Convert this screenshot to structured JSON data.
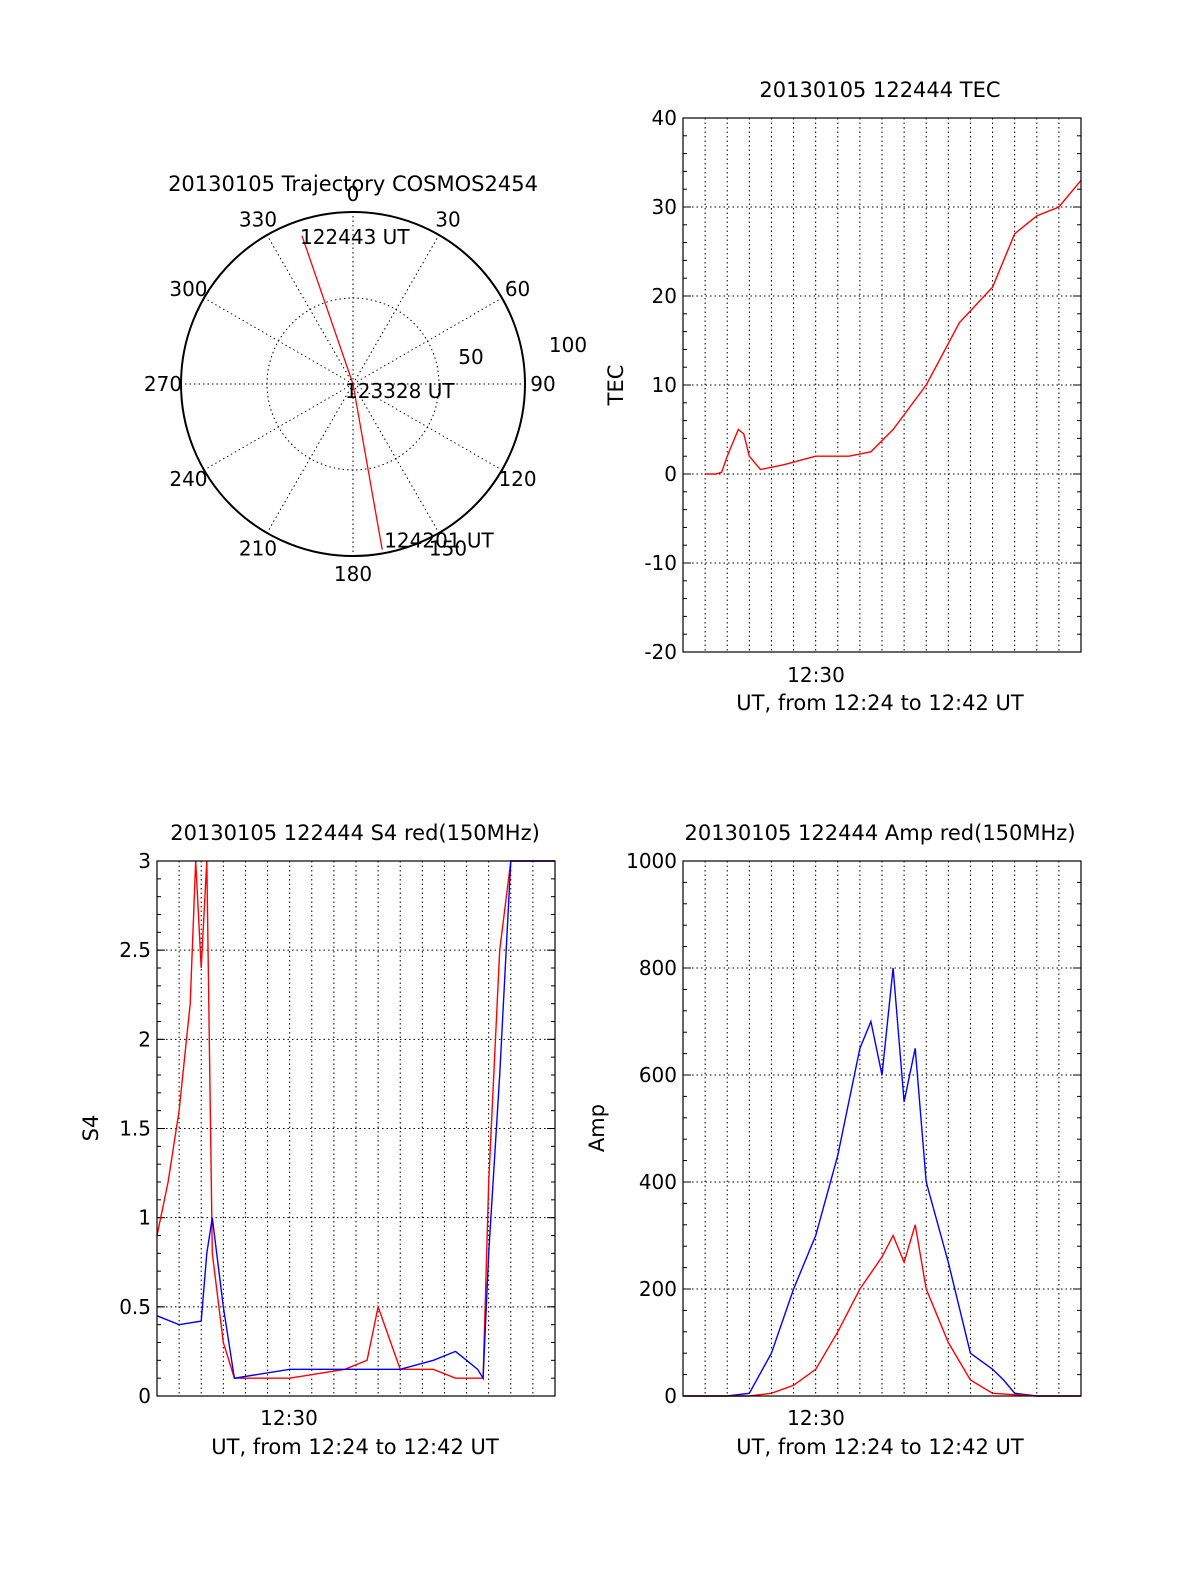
{
  "chart_data": [
    {
      "id": "polar",
      "type": "polar-trajectory",
      "title": "20130105 Trajectory COSMOS2454",
      "azimuth_labels": [
        "0",
        "30",
        "60",
        "90",
        "120",
        "150",
        "180",
        "210",
        "240",
        "270",
        "300",
        "330"
      ],
      "azimuths": [
        0,
        30,
        60,
        90,
        120,
        150,
        180,
        210,
        240,
        270,
        300,
        330
      ],
      "radius_labels": [
        "50",
        "100"
      ],
      "track": {
        "color": "#ff0000",
        "points": [
          {
            "az": 341,
            "zenith": 82
          },
          {
            "az": 0,
            "zenith": 0
          },
          {
            "az": 170,
            "zenith": 88
          }
        ]
      },
      "time_labels": [
        "122443 UT",
        "123328 UT",
        "124201 UT"
      ]
    },
    {
      "id": "tec",
      "type": "line",
      "title": "20130105 122444 TEC",
      "ylabel": "TEC",
      "xlabel": "UT, from 12:24 to 12:42 UT",
      "xtick_label": "12:30",
      "xlim": [
        12.38,
        12.74
      ],
      "ylim": [
        -20,
        40
      ],
      "yticks": [
        "-20",
        "-10",
        "0",
        "10",
        "20",
        "30",
        "40"
      ],
      "series": [
        {
          "color": "#ff0000",
          "x": [
            12.4,
            12.41,
            12.415,
            12.42,
            12.43,
            12.435,
            12.44,
            12.45,
            12.47,
            12.5,
            12.53,
            12.55,
            12.57,
            12.6,
            12.63,
            12.66,
            12.68,
            12.7,
            12.72,
            12.74
          ],
          "y": [
            0,
            0,
            0.2,
            2,
            5,
            4.5,
            2,
            0.5,
            1,
            2,
            2,
            2.5,
            5,
            10,
            17,
            21,
            27,
            29,
            30,
            33
          ]
        }
      ]
    },
    {
      "id": "s4",
      "type": "line",
      "title": "20130105 122444 S4 red(150MHz)",
      "ylabel": "S4",
      "xlabel": "UT, from 12:24 to 12:42 UT",
      "xtick_label": "12:30",
      "xlim": [
        12.38,
        12.74
      ],
      "ylim": [
        0,
        3
      ],
      "yticks": [
        "0",
        "0.5",
        "1",
        "1.5",
        "2",
        "2.5",
        "3"
      ],
      "series": [
        {
          "color": "#ff0000",
          "x": [
            12.38,
            12.39,
            12.4,
            12.41,
            12.415,
            12.42,
            12.425,
            12.43,
            12.44,
            12.45,
            12.5,
            12.55,
            12.57,
            12.58,
            12.6,
            12.63,
            12.65,
            12.66,
            12.675,
            12.68,
            12.69,
            12.7,
            12.74
          ],
          "y": [
            0.9,
            1.2,
            1.6,
            2.2,
            3,
            2.4,
            3,
            0.8,
            0.3,
            0.1,
            0.1,
            0.15,
            0.2,
            0.5,
            0.15,
            0.15,
            0.1,
            0.1,
            0.1,
            1.2,
            2.5,
            3,
            3
          ]
        },
        {
          "color": "#0000ff",
          "x": [
            12.38,
            12.4,
            12.42,
            12.425,
            12.43,
            12.44,
            12.45,
            12.5,
            12.55,
            12.6,
            12.63,
            12.65,
            12.66,
            12.67,
            12.675,
            12.68,
            12.69,
            12.7,
            12.74
          ],
          "y": [
            0.45,
            0.4,
            0.42,
            0.8,
            1.0,
            0.5,
            0.1,
            0.15,
            0.15,
            0.15,
            0.2,
            0.25,
            0.2,
            0.15,
            0.1,
            0.8,
            1.8,
            3,
            3
          ]
        }
      ]
    },
    {
      "id": "amp",
      "type": "line",
      "title": "20130105 122444 Amp red(150MHz)",
      "ylabel": "Amp",
      "xlabel": "UT, from 12:24 to 12:42 UT",
      "xtick_label": "12:30",
      "xlim": [
        12.38,
        12.74
      ],
      "ylim": [
        0,
        1000
      ],
      "yticks": [
        "0",
        "200",
        "400",
        "600",
        "800",
        "1000"
      ],
      "series": [
        {
          "color": "#0000ff",
          "x": [
            12.38,
            12.42,
            12.44,
            12.46,
            12.48,
            12.5,
            12.52,
            12.54,
            12.55,
            12.56,
            12.57,
            12.58,
            12.59,
            12.6,
            12.62,
            12.64,
            12.66,
            12.67,
            12.68,
            12.7,
            12.74
          ],
          "y": [
            0,
            0,
            5,
            80,
            200,
            300,
            450,
            650,
            700,
            600,
            800,
            550,
            650,
            400,
            250,
            80,
            50,
            30,
            5,
            0,
            0
          ]
        },
        {
          "color": "#ff0000",
          "x": [
            12.38,
            12.44,
            12.46,
            12.48,
            12.5,
            12.52,
            12.54,
            12.56,
            12.57,
            12.58,
            12.59,
            12.6,
            12.62,
            12.64,
            12.66,
            12.7,
            12.74
          ],
          "y": [
            0,
            0,
            5,
            20,
            50,
            120,
            200,
            260,
            300,
            250,
            320,
            200,
            100,
            30,
            5,
            0,
            0
          ]
        }
      ]
    }
  ]
}
